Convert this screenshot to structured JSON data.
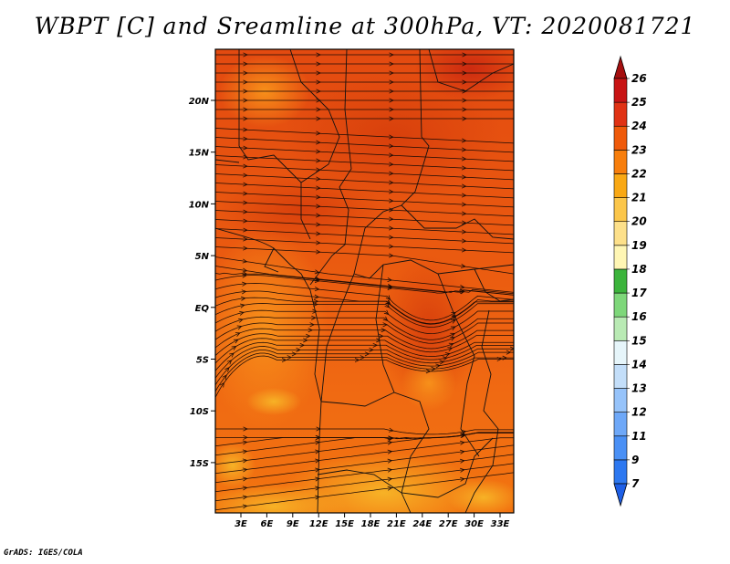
{
  "title": "WBPT [C] and Sreamline at 300hPa, VT: 2020081721",
  "credit": "GrADS: IGES/COLA",
  "map": {
    "lon_labels": [
      "3E",
      "6E",
      "9E",
      "12E",
      "15E",
      "18E",
      "21E",
      "24E",
      "27E",
      "30E",
      "33E"
    ],
    "lat_labels": [
      "20N",
      "15N",
      "10N",
      "5N",
      "EQ",
      "5S",
      "10S",
      "15S"
    ]
  },
  "colorbar": {
    "labels": [
      "7",
      "9",
      "11",
      "12",
      "13",
      "14",
      "15",
      "16",
      "17",
      "18",
      "19",
      "20",
      "21",
      "22",
      "23",
      "24",
      "25",
      "26"
    ],
    "colors": [
      "#1e5fe6",
      "#2d78f0",
      "#4a90f5",
      "#6ea8f8",
      "#96c3fa",
      "#c3def9",
      "#e6f5fa",
      "#b9eab4",
      "#7ed77a",
      "#3cb43c",
      "#fff6b4",
      "#fde08a",
      "#fbc64a",
      "#f9a814",
      "#f77e0c",
      "#ef5a0a",
      "#e03214",
      "#c81414",
      "#a50f0f"
    ]
  }
}
